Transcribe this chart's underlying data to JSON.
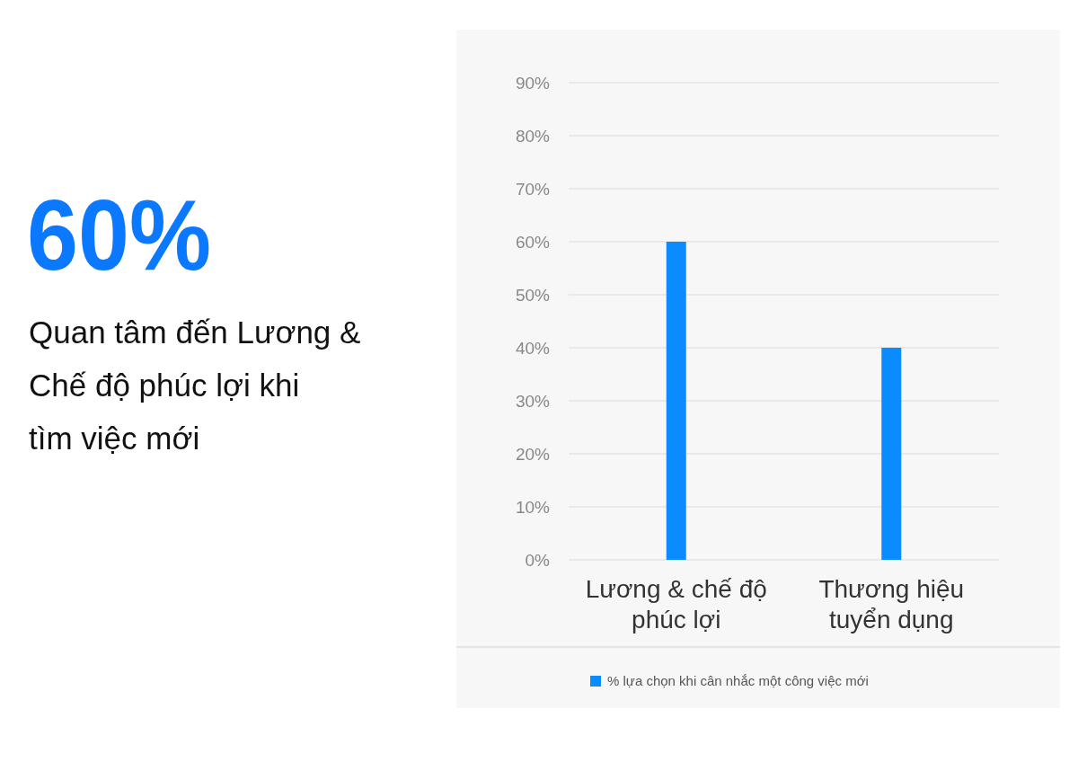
{
  "chart_data": {
    "type": "bar",
    "categories": [
      "Lương & chế độ phúc lợi",
      "Thương hiệu tuyển dụng"
    ],
    "series": [
      {
        "name": "% lựa chọn khi cân nhắc một công việc mới",
        "color": "#0a8cff",
        "values": [
          60,
          40
        ]
      }
    ],
    "ylim": [
      0,
      90
    ],
    "yticks": [
      {
        "value": 0,
        "label": "0%"
      },
      {
        "value": 10,
        "label": "10%"
      },
      {
        "value": 20,
        "label": "20%"
      },
      {
        "value": 30,
        "label": "30%"
      },
      {
        "value": 40,
        "label": "40%"
      },
      {
        "value": 50,
        "label": "50%"
      },
      {
        "value": 60,
        "label": "60%"
      },
      {
        "value": 70,
        "label": "70%"
      },
      {
        "value": 80,
        "label": "80%"
      },
      {
        "value": 90,
        "label": "90%"
      }
    ],
    "grid": "y",
    "legend": "bottom",
    "annotations": [
      "60%",
      "Quan tâm đến Lương & Chế độ phúc lợi khi tìm việc mới"
    ]
  }
}
